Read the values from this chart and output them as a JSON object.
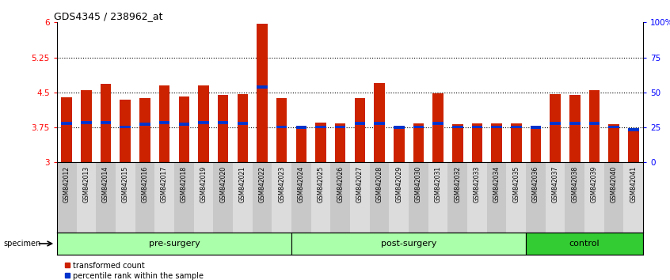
{
  "title": "GDS4345 / 238962_at",
  "samples": [
    "GSM842012",
    "GSM842013",
    "GSM842014",
    "GSM842015",
    "GSM842016",
    "GSM842017",
    "GSM842018",
    "GSM842019",
    "GSM842020",
    "GSM842021",
    "GSM842022",
    "GSM842023",
    "GSM842024",
    "GSM842025",
    "GSM842026",
    "GSM842027",
    "GSM842028",
    "GSM842029",
    "GSM842030",
    "GSM842031",
    "GSM842032",
    "GSM842033",
    "GSM842034",
    "GSM842035",
    "GSM842036",
    "GSM842037",
    "GSM842038",
    "GSM842039",
    "GSM842040",
    "GSM842041"
  ],
  "bar_values": [
    4.4,
    4.55,
    4.68,
    4.35,
    4.38,
    4.65,
    4.42,
    4.65,
    4.45,
    4.47,
    5.97,
    4.38,
    3.77,
    3.86,
    3.83,
    4.38,
    4.7,
    3.78,
    3.83,
    4.48,
    3.82,
    3.83,
    3.83,
    3.83,
    3.78,
    4.46,
    4.44,
    4.55,
    3.82,
    3.7
  ],
  "percentile_values": [
    3.83,
    3.85,
    3.85,
    3.76,
    3.82,
    3.85,
    3.82,
    3.85,
    3.85,
    3.83,
    4.62,
    3.76,
    3.75,
    3.76,
    3.76,
    3.83,
    3.83,
    3.75,
    3.76,
    3.83,
    3.76,
    3.76,
    3.76,
    3.76,
    3.75,
    3.83,
    3.83,
    3.83,
    3.76,
    3.7
  ],
  "ylim": [
    3.0,
    6.0
  ],
  "yticks_left": [
    3,
    3.75,
    4.5,
    5.25,
    6
  ],
  "ytick_labels_left": [
    "3",
    "3.75",
    "4.5",
    "5.25",
    "6"
  ],
  "ytick_labels_right": [
    "0",
    "25",
    "50",
    "75",
    "100%"
  ],
  "hlines": [
    3.75,
    4.5,
    5.25
  ],
  "bar_color": "#CC2200",
  "percentile_color": "#0033CC",
  "bar_width": 0.55,
  "groups": [
    {
      "name": "pre-surgery",
      "start": 0,
      "end": 12,
      "color": "#AAFFAA"
    },
    {
      "name": "post-surgery",
      "start": 12,
      "end": 24,
      "color": "#AAFFAA"
    },
    {
      "name": "control",
      "start": 24,
      "end": 30,
      "color": "#33CC33"
    }
  ]
}
